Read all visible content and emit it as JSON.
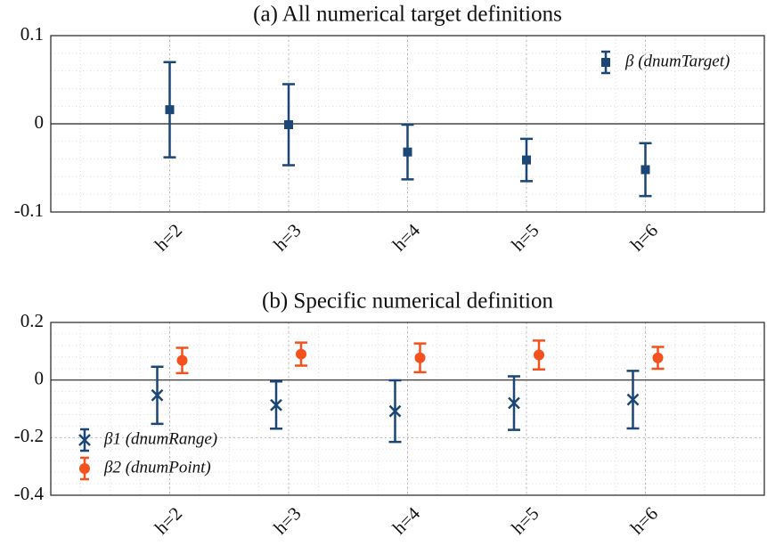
{
  "chart_data": [
    {
      "type": "errorbar",
      "title": "(a) All numerical target definitions",
      "categories": [
        "h=2",
        "h=3",
        "h=4",
        "h=5",
        "h=6"
      ],
      "series": [
        {
          "name": "β (dnumTarget)",
          "color": "#1b4675",
          "marker": "square",
          "values": [
            0.016,
            -0.001,
            -0.032,
            -0.041,
            -0.052
          ],
          "errors": [
            0.054,
            0.046,
            0.031,
            0.024,
            0.03
          ]
        }
      ],
      "ylim": [
        -0.1,
        0.1
      ],
      "yticks": [
        -0.1,
        0,
        0.1
      ],
      "grid": true,
      "legend": "top-right"
    },
    {
      "type": "errorbar",
      "title": "(b) Specific numerical definition",
      "categories": [
        "h=2",
        "h=3",
        "h=4",
        "h=5",
        "h=6"
      ],
      "series": [
        {
          "name": "β1 (dnumRange)",
          "color": "#1b4675",
          "marker": "x",
          "values": [
            -0.053,
            -0.087,
            -0.108,
            -0.08,
            -0.068
          ],
          "errors": [
            0.099,
            0.082,
            0.107,
            0.093,
            0.1
          ]
        },
        {
          "name": "β2 (dnumPoint)",
          "color": "#f4511e",
          "marker": "circle",
          "values": [
            0.068,
            0.09,
            0.077,
            0.087,
            0.077
          ],
          "errors": [
            0.044,
            0.04,
            0.05,
            0.05,
            0.038
          ]
        }
      ],
      "ylim": [
        -0.4,
        0.2
      ],
      "yticks": [
        -0.4,
        -0.2,
        0,
        0.2
      ],
      "grid": true,
      "legend": "bottom-left"
    }
  ]
}
